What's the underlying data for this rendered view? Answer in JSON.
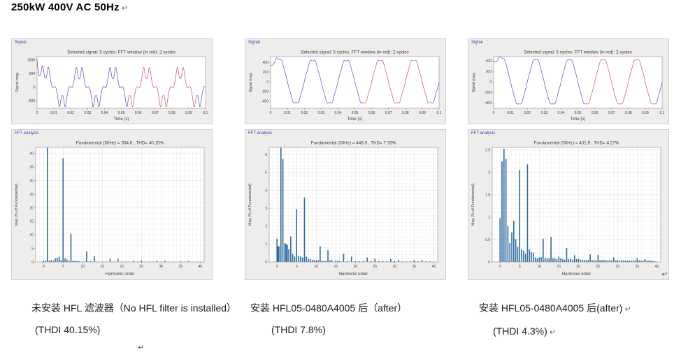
{
  "page": {
    "title": "250kW 400V AC 50Hz",
    "return_mark": "↵"
  },
  "colors": {
    "bar": "#2e6b9e",
    "line_blue": "#5a5ad0",
    "line_red": "#d0606e",
    "panel_bg": "#eeedeb",
    "panel_border": "#d2d0cd",
    "panel_label": "#3a3ab8",
    "axis": "#8f8f8f",
    "tick_text": "#3c3c3c",
    "title_text": "#333333",
    "grid_minor": "#ededed",
    "grid_major": "#dcdcdc"
  },
  "columns": [
    {
      "signal_window_label": "Signal",
      "fft_window_label": "FFT analysis",
      "caption_line1": "未安装 HFL 滤波器（No HFL filter is installed）",
      "caption_line2": "(THDI 40.15%)",
      "caption_has_return": false
    },
    {
      "signal_window_label": "Signal",
      "fft_window_label": "FFT analysis",
      "caption_line1": "安装 HFL05-0480A4005 后（after）",
      "caption_line2": "(THDI 7.8%)",
      "caption_has_return": false
    },
    {
      "signal_window_label": "Signal",
      "fft_window_label": "FFT analysis",
      "caption_line1": "安装 HFL05-0480A4005 后(after)",
      "caption_line2": "(THDI 4.3%)",
      "caption_has_return": true
    }
  ],
  "chart_data": [
    {
      "type": "line",
      "column": 0,
      "title": "Selected signal: 5 cycles. FFT window (in red): 2 cycles",
      "xlabel": "Time (s)",
      "ylabel": "Signal mag",
      "xlim": [
        0,
        0.1
      ],
      "xticks": [
        0,
        0.01,
        0.02,
        0.03,
        0.04,
        0.05,
        0.06,
        0.07,
        0.08,
        0.09,
        0.1
      ],
      "ylim": [
        -780,
        1120
      ],
      "yticks": [
        -500,
        0,
        500,
        1000
      ],
      "grid": false,
      "frequency_hz": 50,
      "cycles": 5,
      "red_window_s": [
        0.055,
        0.095
      ],
      "harmonics": [
        {
          "n": 1,
          "amp": 540,
          "phase_deg": 0
        },
        {
          "n": 5,
          "amp": 210,
          "phase_deg": 180
        },
        {
          "n": 7,
          "amp": 56,
          "phase_deg": 0
        },
        {
          "n": 11,
          "amp": 19,
          "phase_deg": 180
        },
        {
          "n": 13,
          "amp": 11,
          "phase_deg": 0
        }
      ],
      "transient": {
        "amp": 1050,
        "tau_s": 0.0012
      }
    },
    {
      "type": "bar",
      "column": 0,
      "title": "Fundamental (50Hz) = 504.8 , THD= 40.15%",
      "xlabel": "Harmonic order",
      "ylabel": "Mag (% of Fundamental)",
      "xlim": [
        -2,
        41
      ],
      "xticks": [
        0,
        5,
        10,
        15,
        20,
        25,
        30,
        35,
        40
      ],
      "ylim": [
        0,
        42.3
      ],
      "yticks": [
        0,
        5,
        10,
        15,
        20,
        25,
        30,
        35,
        40
      ],
      "grid": true,
      "grid_minor_x": 1,
      "grid_minor_y": 2,
      "bars": [
        [
          0,
          0.4
        ],
        [
          0.5,
          0.45
        ],
        [
          1,
          42.2
        ],
        [
          1.5,
          0.5
        ],
        [
          2,
          0.65
        ],
        [
          2.5,
          0.4
        ],
        [
          3,
          1.35
        ],
        [
          3.5,
          1.55
        ],
        [
          4,
          1.9
        ],
        [
          4.5,
          0.7
        ],
        [
          5,
          38.3
        ],
        [
          5.5,
          1.25
        ],
        [
          6,
          0.9
        ],
        [
          6.5,
          0.45
        ],
        [
          7,
          10.4
        ],
        [
          7.5,
          0.5
        ],
        [
          8,
          0.35
        ],
        [
          8.5,
          0.3
        ],
        [
          9,
          0.35
        ],
        [
          10,
          0.15
        ],
        [
          10.5,
          0.2
        ],
        [
          11,
          3.8
        ],
        [
          12,
          0.25
        ],
        [
          13,
          2.1
        ],
        [
          14,
          0.15
        ],
        [
          15,
          0.1
        ],
        [
          16,
          0.1
        ],
        [
          17,
          1.2
        ],
        [
          18,
          0.1
        ],
        [
          19,
          1.15
        ],
        [
          20,
          0.1
        ],
        [
          21,
          0.1
        ],
        [
          22,
          0.1
        ],
        [
          23,
          0.45
        ],
        [
          24,
          0.1
        ],
        [
          25,
          0.55
        ],
        [
          26,
          0.1
        ],
        [
          27,
          0.1
        ],
        [
          28,
          0.1
        ],
        [
          29,
          0.35
        ],
        [
          30,
          0.1
        ],
        [
          31,
          0.4
        ],
        [
          33,
          0.1
        ],
        [
          35,
          0.25
        ],
        [
          37,
          0.3
        ],
        [
          39,
          0.1
        ]
      ]
    },
    {
      "type": "line",
      "column": 1,
      "title": "Selected signal: 5 cycles. FFT window (in red): 2 cycles",
      "xlabel": "Time (s)",
      "ylabel": "Signal mag.",
      "xlim": [
        0,
        0.1
      ],
      "xticks": [
        0,
        0.01,
        0.02,
        0.03,
        0.04,
        0.05,
        0.06,
        0.07,
        0.08,
        0.09,
        0.1
      ],
      "ylim": [
        -545,
        515
      ],
      "yticks": [
        -400,
        -200,
        0,
        200,
        400
      ],
      "grid": false,
      "frequency_hz": 50,
      "cycles": 5,
      "red_window_s": [
        0.055,
        0.095
      ],
      "harmonics": [
        {
          "n": 1,
          "amp": 455,
          "phase_deg": 0
        },
        {
          "n": 5,
          "amp": 14,
          "phase_deg": 180
        },
        {
          "n": 7,
          "amp": 16,
          "phase_deg": 0
        }
      ],
      "transient": {
        "amp": 330,
        "tau_s": 0.002
      }
    },
    {
      "type": "bar",
      "column": 1,
      "title": "Fundamental (50Hz) = 446.9 , THD= 7.78%",
      "xlabel": "Harmonic order",
      "ylabel": "Mag (% of Fundamental)",
      "xlim": [
        -2,
        41
      ],
      "xticks": [
        0,
        5,
        10,
        15,
        20,
        25,
        30,
        35,
        40
      ],
      "ylim": [
        0,
        6.4
      ],
      "yticks": [
        0,
        1,
        2,
        3,
        4,
        5,
        6
      ],
      "grid": true,
      "grid_minor_x": 1,
      "grid_minor_y": 0.2,
      "bars": [
        [
          0,
          1.3
        ],
        [
          0.25,
          0.85
        ],
        [
          0.5,
          0.88
        ],
        [
          1,
          6.38
        ],
        [
          1.5,
          5.75
        ],
        [
          2,
          1.05
        ],
        [
          2.3,
          1.0
        ],
        [
          2.6,
          0.95
        ],
        [
          3,
          0.7
        ],
        [
          3.5,
          1.42
        ],
        [
          4,
          0.45
        ],
        [
          4.5,
          0.3
        ],
        [
          5,
          2.95
        ],
        [
          5.5,
          0.35
        ],
        [
          6,
          0.3
        ],
        [
          6.5,
          0.25
        ],
        [
          7,
          3.6
        ],
        [
          7.5,
          0.3
        ],
        [
          8,
          0.17
        ],
        [
          8.5,
          0.15
        ],
        [
          9,
          0.12
        ],
        [
          9.5,
          0.1
        ],
        [
          10,
          0.08
        ],
        [
          10.5,
          0.1
        ],
        [
          11,
          0.88
        ],
        [
          11.5,
          0.08
        ],
        [
          12,
          0.06
        ],
        [
          12.5,
          0.06
        ],
        [
          13,
          0.65
        ],
        [
          13.5,
          0.08
        ],
        [
          14,
          0.1
        ],
        [
          15,
          0.08
        ],
        [
          15.5,
          0.06
        ],
        [
          16,
          0.05
        ],
        [
          17,
          0.45
        ],
        [
          18,
          0.05
        ],
        [
          19,
          0.3
        ],
        [
          20,
          0.05
        ],
        [
          21,
          0.04
        ],
        [
          22,
          0.04
        ],
        [
          23,
          0.25
        ],
        [
          24,
          0.04
        ],
        [
          25,
          0.18
        ],
        [
          26,
          0.04
        ],
        [
          27,
          0.04
        ],
        [
          28,
          0.04
        ],
        [
          29,
          0.16
        ],
        [
          30,
          0.04
        ],
        [
          31,
          0.12
        ],
        [
          32,
          0.03
        ],
        [
          33,
          0.03
        ],
        [
          34,
          0.03
        ],
        [
          35,
          0.1
        ],
        [
          36,
          0.03
        ],
        [
          37,
          0.1
        ],
        [
          38,
          0.03
        ],
        [
          39,
          0.03
        ]
      ]
    },
    {
      "type": "line",
      "column": 2,
      "title": "Selected signal: 5 cycles. FFT window (in red): 2 cycles",
      "xlabel": "Time (s)",
      "ylabel": "Signal mag.",
      "xlim": [
        0,
        0.1
      ],
      "xticks": [
        0,
        0.01,
        0.02,
        0.03,
        0.04,
        0.05,
        0.06,
        0.07,
        0.08,
        0.09,
        0.1
      ],
      "ylim": [
        -500,
        480
      ],
      "yticks": [
        -400,
        -200,
        0,
        200,
        400
      ],
      "grid": false,
      "frequency_hz": 50,
      "cycles": 5,
      "red_window_s": [
        0.055,
        0.095
      ],
      "harmonics": [
        {
          "n": 1,
          "amp": 435,
          "phase_deg": 0
        },
        {
          "n": 5,
          "amp": 9,
          "phase_deg": 180
        },
        {
          "n": 7,
          "amp": 9,
          "phase_deg": 0
        }
      ],
      "transient": {
        "amp": 400,
        "tau_s": 0.002
      }
    },
    {
      "type": "bar",
      "column": 2,
      "title": "Fundamental (50Hz) = 431.9 , THD= 4.27%",
      "xlabel": "Harmonic order",
      "ylabel": "Mag (% of Fundamental)",
      "xlim": [
        -2,
        41
      ],
      "xticks": [
        0,
        5,
        10,
        15,
        20,
        25,
        30,
        35,
        40
      ],
      "ylim": [
        0,
        2.56
      ],
      "yticks": [
        0,
        0.5,
        1,
        1.5,
        2,
        2.5
      ],
      "grid": true,
      "grid_minor_x": 1,
      "grid_minor_y": 0.1,
      "bars": [
        [
          0,
          0.98
        ],
        [
          0.5,
          2.25
        ],
        [
          1,
          2.53
        ],
        [
          1.5,
          2.3
        ],
        [
          2,
          0.8
        ],
        [
          2.5,
          0.42
        ],
        [
          3,
          0.66
        ],
        [
          3.5,
          0.92
        ],
        [
          4,
          0.51
        ],
        [
          4.5,
          0.34
        ],
        [
          5,
          2.05
        ],
        [
          5.5,
          0.28
        ],
        [
          6,
          0.25
        ],
        [
          6.5,
          0.18
        ],
        [
          7,
          2.18
        ],
        [
          7.5,
          0.28
        ],
        [
          8,
          0.22
        ],
        [
          8.5,
          0.21
        ],
        [
          9,
          0.1
        ],
        [
          9.5,
          0.08
        ],
        [
          10,
          0.1
        ],
        [
          10.5,
          0.11
        ],
        [
          11,
          0.52
        ],
        [
          11.5,
          0.09
        ],
        [
          12,
          0.08
        ],
        [
          12.5,
          0.08
        ],
        [
          13,
          0.56
        ],
        [
          13.5,
          0.08
        ],
        [
          14,
          0.08
        ],
        [
          14.5,
          0.06
        ],
        [
          15,
          0.12
        ],
        [
          15.5,
          0.08
        ],
        [
          16,
          0.06
        ],
        [
          16.5,
          0.05
        ],
        [
          17,
          0.31
        ],
        [
          17.5,
          0.06
        ],
        [
          18,
          0.07
        ],
        [
          18.5,
          0.05
        ],
        [
          19,
          0.15
        ],
        [
          19.5,
          0.06
        ],
        [
          20,
          0.07
        ],
        [
          20.5,
          0.05
        ],
        [
          21,
          0.05
        ],
        [
          21.5,
          0.04
        ],
        [
          22,
          0.04
        ],
        [
          22.5,
          0.04
        ],
        [
          23,
          0.17
        ],
        [
          23.5,
          0.04
        ],
        [
          24,
          0.04
        ],
        [
          24.5,
          0.04
        ],
        [
          25,
          0.16
        ],
        [
          25.5,
          0.04
        ],
        [
          26,
          0.04
        ],
        [
          26.5,
          0.04
        ],
        [
          27,
          0.04
        ],
        [
          27.5,
          0.03
        ],
        [
          28,
          0.04
        ],
        [
          28.5,
          0.03
        ],
        [
          29,
          0.1
        ],
        [
          29.5,
          0.03
        ],
        [
          30,
          0.04
        ],
        [
          30.5,
          0.03
        ],
        [
          31,
          0.04
        ],
        [
          31.5,
          0.03
        ],
        [
          32,
          0.03
        ],
        [
          32.5,
          0.03
        ],
        [
          33,
          0.03
        ],
        [
          33.5,
          0.03
        ],
        [
          34,
          0.03
        ],
        [
          34.5,
          0.03
        ],
        [
          35,
          0.08
        ],
        [
          35.5,
          0.03
        ],
        [
          36,
          0.03
        ],
        [
          36.5,
          0.03
        ],
        [
          37,
          0.06
        ],
        [
          37.5,
          0.03
        ],
        [
          38,
          0.03
        ],
        [
          38.5,
          0.03
        ],
        [
          39,
          0.02
        ],
        [
          39.5,
          0.02
        ]
      ]
    }
  ]
}
